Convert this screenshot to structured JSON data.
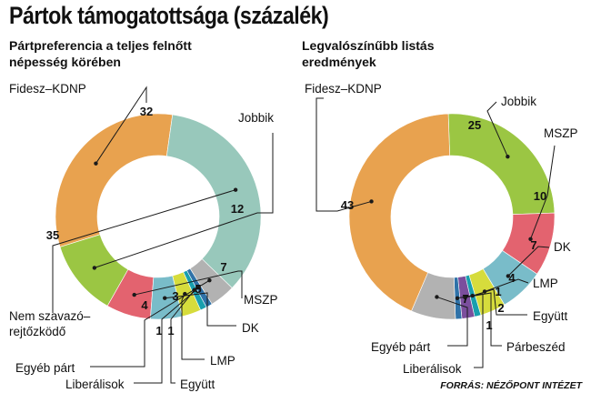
{
  "title": "Pártok támogatottsága (százalék)",
  "source": "FORRÁS: NÉZŐPONT INTÉZET",
  "chart_data": [
    {
      "type": "pie",
      "title_lines": [
        "Pártpreferencia a teljes felnőtt",
        "népesség körében"
      ],
      "slices": [
        {
          "label": "Fidesz–KDNP",
          "value": 32,
          "color": "#e8a24f"
        },
        {
          "label": "Jobbik",
          "value": 12,
          "color": "#9bc643"
        },
        {
          "label": "MSZP",
          "value": 7,
          "color": "#e3636f"
        },
        {
          "label": "DK",
          "value": 5,
          "color": "#79bcc9"
        },
        {
          "label": "LMP",
          "value": 3,
          "color": "#d6dc3c"
        },
        {
          "label": "Együtt",
          "value": 1,
          "color": "#189fae"
        },
        {
          "label": "Liberálisok",
          "value": 1,
          "color": "#2f72a8"
        },
        {
          "label": "Egyéb párt",
          "value": 4,
          "color": "#b2b2b2"
        },
        {
          "label": "Nem szavazó–rejtőzködő",
          "label_lines": [
            "Nem szavazó–",
            "rejtőzködő"
          ],
          "value": 35,
          "color": "#98c8bb"
        }
      ]
    },
    {
      "type": "pie",
      "title_lines": [
        "Legvalószínűbb listás",
        "eredmények"
      ],
      "slices": [
        {
          "label": "Jobbik",
          "value": 25,
          "color": "#9bc643"
        },
        {
          "label": "MSZP",
          "value": 10,
          "color": "#e3636f"
        },
        {
          "label": "DK",
          "value": 7,
          "color": "#79bcc9"
        },
        {
          "label": "LMP",
          "value": 4,
          "color": "#d6dc3c"
        },
        {
          "label": "Együtt",
          "value": 1,
          "color": "#189fae"
        },
        {
          "label": "Párbeszéd",
          "value": 2,
          "color": "#7b4f9d"
        },
        {
          "label": "Liberálisok",
          "value": 1,
          "color": "#2f72a8"
        },
        {
          "label": "Egyéb párt",
          "value": 7,
          "color": "#b2b2b2"
        },
        {
          "label": "Fidesz–KDNP",
          "value": 43,
          "color": "#e8a24f"
        }
      ]
    }
  ]
}
